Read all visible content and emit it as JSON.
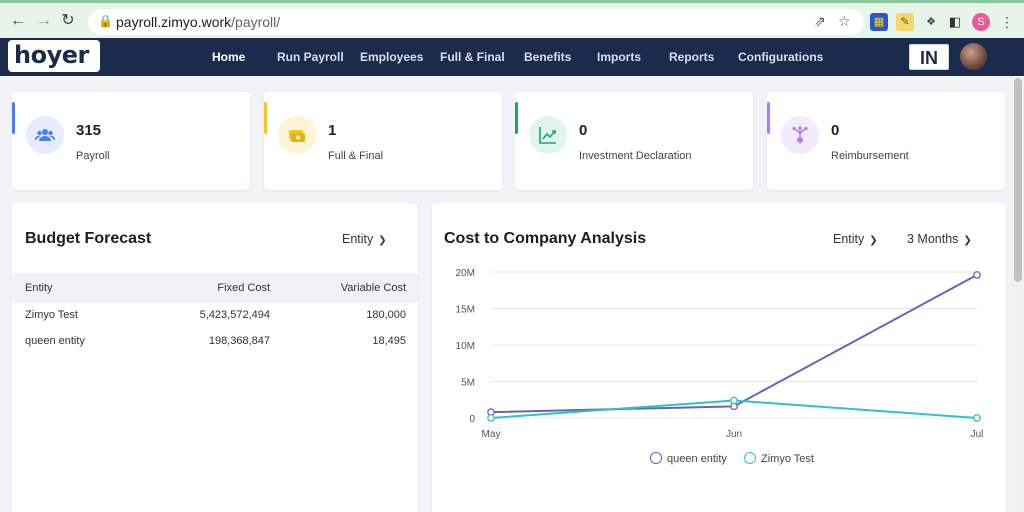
{
  "browser": {
    "url_host": "payroll.zimyo.work",
    "url_path": "/payroll/",
    "profile_initial": "S"
  },
  "app": {
    "logo_text": "hoyer",
    "menu": [
      {
        "label": "Home"
      },
      {
        "label": "Run Payroll"
      },
      {
        "label": "Employees"
      },
      {
        "label": "Full & Final"
      },
      {
        "label": "Benefits"
      },
      {
        "label": "Imports"
      },
      {
        "label": "Reports"
      },
      {
        "label": "Configurations"
      }
    ],
    "badge": "IN"
  },
  "stats": [
    {
      "value": "315",
      "label": "Payroll",
      "accent": "#4a7cf6"
    },
    {
      "value": "1",
      "label": "Full & Final",
      "accent": "#f3c623"
    },
    {
      "value": "0",
      "label": "Investment Declaration",
      "accent": "#17a673"
    },
    {
      "value": "0",
      "label": "Reimbursement",
      "accent": "#b57cf0"
    }
  ],
  "budget": {
    "title": "Budget Forecast",
    "filter": "Entity",
    "columns": [
      "Entity",
      "Fixed Cost",
      "Variable Cost"
    ],
    "rows": [
      {
        "entity": "Zimyo Test",
        "fixed": "5,423,572,494",
        "variable": "180,000"
      },
      {
        "entity": "queen entity",
        "fixed": "198,368,847",
        "variable": "18,495"
      }
    ]
  },
  "ctc": {
    "title": "Cost to Company Analysis",
    "filter_entity": "Entity",
    "filter_period": "3 Months"
  },
  "chart_data": {
    "type": "line",
    "categories": [
      "May",
      "Jun",
      "Jul"
    ],
    "y_ticks": [
      "0",
      "5M",
      "10M",
      "15M",
      "20M"
    ],
    "ylim": [
      0,
      20000000
    ],
    "grid": true,
    "legend_position": "bottom",
    "series": [
      {
        "name": "queen entity",
        "color": "#6b63b5",
        "values": [
          800000,
          1600000,
          19600000
        ]
      },
      {
        "name": "Zimyo Test",
        "color": "#2ec4c4",
        "values": [
          0,
          2400000,
          0
        ]
      }
    ]
  }
}
